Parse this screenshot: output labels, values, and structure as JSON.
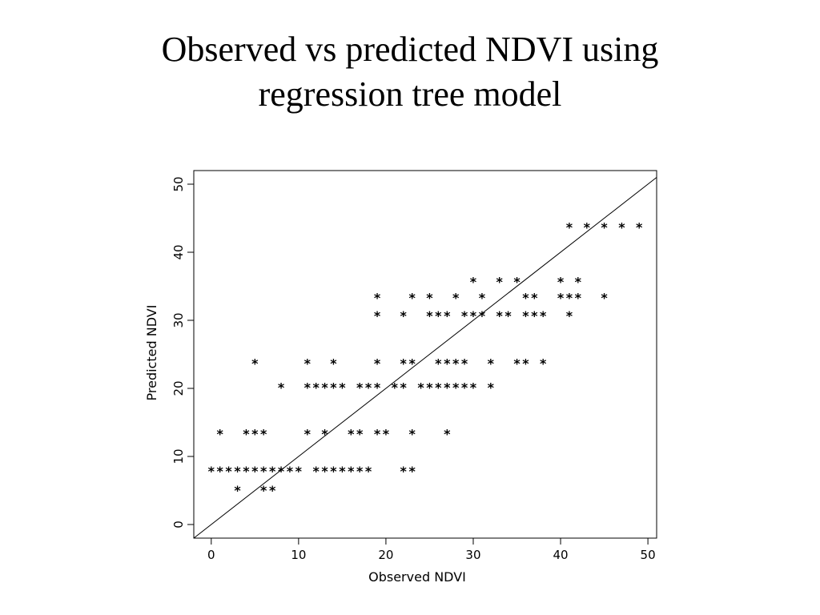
{
  "title": {
    "line1": "Observed vs predicted NDVI using",
    "line2": "regression tree model"
  },
  "chart_data": {
    "type": "scatter",
    "title": "",
    "xlabel": "Observed NDVI",
    "ylabel": "Predicted NDVI",
    "xlim": [
      -2,
      51
    ],
    "ylim": [
      -2,
      52
    ],
    "xticks": [
      0,
      10,
      20,
      30,
      40,
      50
    ],
    "yticks": [
      0,
      10,
      20,
      30,
      40,
      50
    ],
    "marker": "*",
    "reference_line": {
      "x": [
        -2,
        51
      ],
      "y": [
        -2,
        51
      ]
    },
    "grid": false,
    "legend": "none",
    "series": [
      {
        "points": [
          [
            0,
            8
          ],
          [
            1,
            8
          ],
          [
            2,
            8
          ],
          [
            3,
            8
          ],
          [
            4,
            8
          ],
          [
            5,
            8
          ],
          [
            6,
            8
          ],
          [
            7,
            8
          ],
          [
            8,
            8
          ],
          [
            9,
            8
          ],
          [
            10,
            8
          ],
          [
            12,
            8
          ],
          [
            13,
            8
          ],
          [
            14,
            8
          ],
          [
            15,
            8
          ],
          [
            16,
            8
          ],
          [
            17,
            8
          ],
          [
            18,
            8
          ],
          [
            22,
            8
          ],
          [
            23,
            8
          ],
          [
            3,
            5.2
          ],
          [
            6,
            5.2
          ],
          [
            7,
            5.2
          ],
          [
            1,
            13.5
          ],
          [
            4,
            13.5
          ],
          [
            5,
            13.5
          ],
          [
            6,
            13.5
          ],
          [
            11,
            13.5
          ],
          [
            13,
            13.5
          ],
          [
            16,
            13.5
          ],
          [
            17,
            13.5
          ],
          [
            19,
            13.5
          ],
          [
            20,
            13.5
          ],
          [
            23,
            13.5
          ],
          [
            27,
            13.5
          ],
          [
            8,
            20.3
          ],
          [
            11,
            20.3
          ],
          [
            12,
            20.3
          ],
          [
            13,
            20.3
          ],
          [
            14,
            20.3
          ],
          [
            15,
            20.3
          ],
          [
            17,
            20.3
          ],
          [
            18,
            20.3
          ],
          [
            19,
            20.3
          ],
          [
            21,
            20.3
          ],
          [
            22,
            20.3
          ],
          [
            24,
            20.3
          ],
          [
            25,
            20.3
          ],
          [
            26,
            20.3
          ],
          [
            27,
            20.3
          ],
          [
            28,
            20.3
          ],
          [
            29,
            20.3
          ],
          [
            30,
            20.3
          ],
          [
            32,
            20.3
          ],
          [
            5,
            23.8
          ],
          [
            11,
            23.8
          ],
          [
            14,
            23.8
          ],
          [
            19,
            23.8
          ],
          [
            22,
            23.8
          ],
          [
            23,
            23.8
          ],
          [
            26,
            23.8
          ],
          [
            27,
            23.8
          ],
          [
            28,
            23.8
          ],
          [
            29,
            23.8
          ],
          [
            32,
            23.8
          ],
          [
            35,
            23.8
          ],
          [
            36,
            23.8
          ],
          [
            38,
            23.8
          ],
          [
            19,
            30.8
          ],
          [
            22,
            30.8
          ],
          [
            25,
            30.8
          ],
          [
            26,
            30.8
          ],
          [
            27,
            30.8
          ],
          [
            29,
            30.8
          ],
          [
            30,
            30.8
          ],
          [
            31,
            30.8
          ],
          [
            33,
            30.8
          ],
          [
            34,
            30.8
          ],
          [
            36,
            30.8
          ],
          [
            37,
            30.8
          ],
          [
            38,
            30.8
          ],
          [
            41,
            30.8
          ],
          [
            19,
            33.5
          ],
          [
            23,
            33.5
          ],
          [
            25,
            33.5
          ],
          [
            28,
            33.5
          ],
          [
            31,
            33.5
          ],
          [
            36,
            33.5
          ],
          [
            37,
            33.5
          ],
          [
            40,
            33.5
          ],
          [
            41,
            33.5
          ],
          [
            42,
            33.5
          ],
          [
            45,
            33.5
          ],
          [
            30,
            35.8
          ],
          [
            33,
            35.8
          ],
          [
            35,
            35.8
          ],
          [
            40,
            35.8
          ],
          [
            42,
            35.8
          ],
          [
            41,
            43.8
          ],
          [
            43,
            43.8
          ],
          [
            45,
            43.8
          ],
          [
            47,
            43.8
          ],
          [
            49,
            43.8
          ]
        ]
      }
    ]
  }
}
